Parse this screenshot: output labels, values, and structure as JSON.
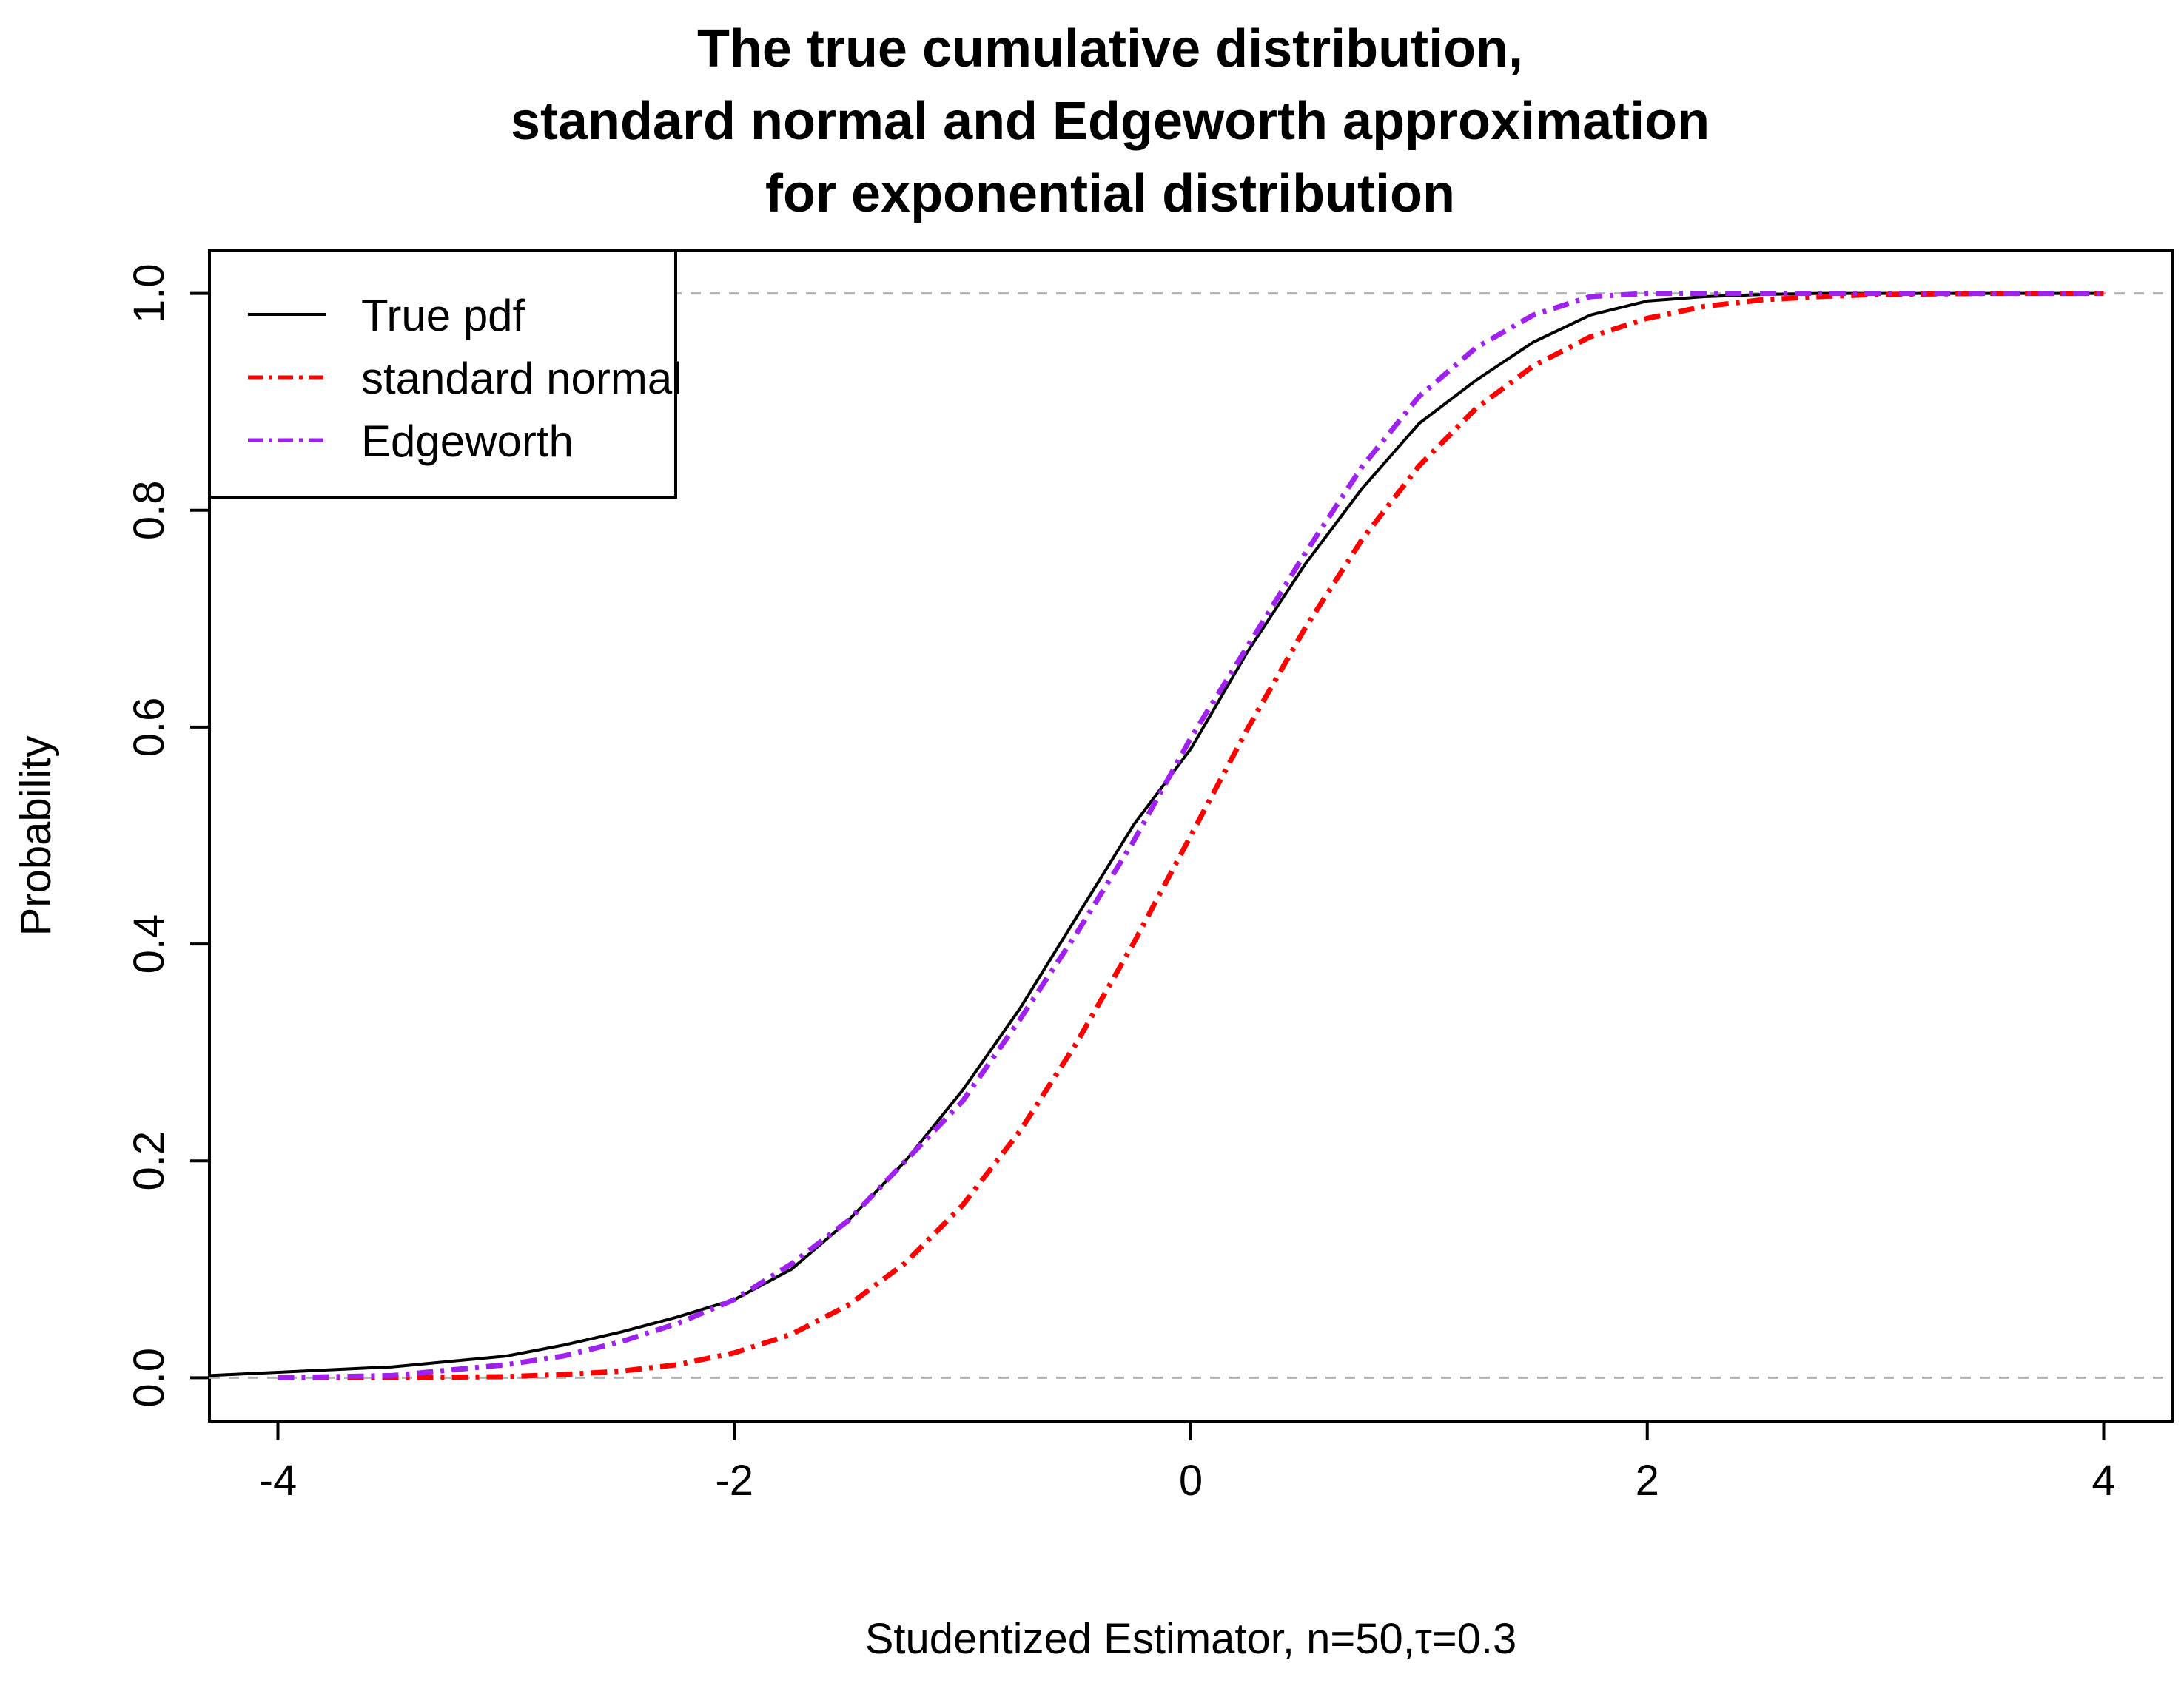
{
  "chart_data": {
    "type": "line",
    "title": [
      "The true cumulative distribution,",
      "standard normal and Edgeworth approximation",
      "for exponential distribution"
    ],
    "xlabel": "Studentized Estimator, n=50,τ=0.3",
    "ylabel": "Probability",
    "xlim": [
      -4.3,
      4.3
    ],
    "ylim": [
      -0.04,
      1.04
    ],
    "xticks": [
      -4,
      -2,
      0,
      2,
      4
    ],
    "xtick_labels": [
      "-4",
      "-2",
      "0",
      "2",
      "4"
    ],
    "yticks": [
      0.0,
      0.2,
      0.4,
      0.6,
      0.8,
      1.0
    ],
    "ytick_labels": [
      "0.0",
      "0.2",
      "0.4",
      "0.6",
      "0.8",
      "1.0"
    ],
    "reference_lines": [
      0,
      1
    ],
    "legend_position": "top-left",
    "x": [
      -4.3,
      -4.0,
      -3.5,
      -3.0,
      -2.75,
      -2.5,
      -2.25,
      -2.0,
      -1.75,
      -1.5,
      -1.25,
      -1.0,
      -0.75,
      -0.5,
      -0.25,
      0.0,
      0.25,
      0.5,
      0.75,
      1.0,
      1.25,
      1.5,
      1.75,
      2.0,
      2.25,
      2.5,
      2.75,
      3.0,
      3.5,
      4.0
    ],
    "series": [
      {
        "name": "True pdf",
        "color": "#000000",
        "style": "solid",
        "values": [
          0.002,
          0.005,
          0.01,
          0.02,
          0.03,
          0.042,
          0.056,
          0.072,
          0.1,
          0.145,
          0.2,
          0.265,
          0.34,
          0.425,
          0.51,
          0.58,
          0.67,
          0.75,
          0.82,
          0.88,
          0.92,
          0.955,
          0.98,
          0.993,
          0.997,
          0.999,
          1.0,
          1.0,
          1.0,
          1.0
        ]
      },
      {
        "name": "standard normal",
        "color": "#ff0000",
        "style": "dashdot",
        "values": [
          null,
          0.0,
          0.0,
          0.001,
          0.003,
          0.006,
          0.012,
          0.023,
          0.04,
          0.067,
          0.106,
          0.159,
          0.227,
          0.309,
          0.401,
          0.5,
          0.599,
          0.691,
          0.773,
          0.841,
          0.894,
          0.933,
          0.96,
          0.977,
          0.988,
          0.994,
          0.997,
          0.999,
          1.0,
          1.0
        ]
      },
      {
        "name": "Edgeworth",
        "color": "#a020f0",
        "style": "dashdot",
        "values": [
          null,
          0.0,
          0.002,
          0.012,
          0.02,
          0.033,
          0.05,
          0.072,
          0.105,
          0.145,
          0.2,
          0.255,
          0.33,
          0.41,
          0.495,
          0.59,
          0.675,
          0.76,
          0.84,
          0.905,
          0.95,
          0.98,
          0.997,
          1.0,
          1.0,
          1.0,
          1.0,
          1.0,
          1.0,
          1.0
        ]
      }
    ]
  }
}
